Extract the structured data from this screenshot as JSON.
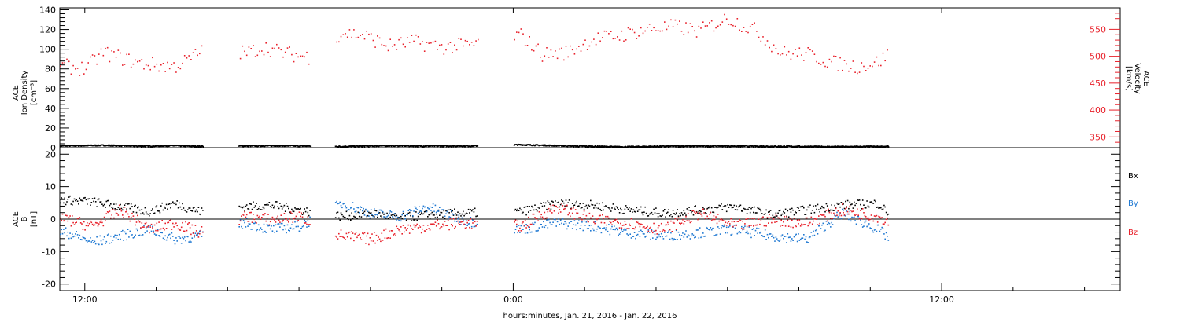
{
  "x_label": "hours:minutes, Jan. 21, 2016 - Jan. 22, 2016",
  "x_ticks": [
    "12:00",
    "0:00",
    "12:00"
  ],
  "colors": {
    "black": "#000000",
    "blue": "#1e78d2",
    "red": "#e8202a"
  },
  "chart_data": [
    {
      "type": "scatter",
      "panel": "top",
      "ylabel_left": [
        "ACE",
        "Ion Density",
        "[cm⁻³]"
      ],
      "ylabel_right": [
        "ACE",
        "Velocity",
        "[km/s]"
      ],
      "ylim": [
        0,
        142
      ],
      "ylim_right": [
        330,
        590
      ],
      "y_ticks": [
        "0",
        "20",
        "40",
        "60",
        "80",
        "100",
        "120",
        "140"
      ],
      "y_ticks_right": [
        "350",
        "400",
        "450",
        "500",
        "550"
      ],
      "x_range_hours": [
        11.3,
        41.0
      ],
      "data_segments_hours": [
        [
          11.3,
          15.3
        ],
        [
          16.3,
          18.3
        ],
        [
          19.0,
          23.0
        ],
        [
          24.0,
          34.5
        ]
      ],
      "series": [
        {
          "axis": "left",
          "color": "#000000",
          "x_hours": [
            11.5,
            12.5,
            13.5,
            14.5,
            15.2,
            16.5,
            17.5,
            18.2,
            19.2,
            20.5,
            21.5,
            22.8,
            24.2,
            25.5,
            27.0,
            28.5,
            30.0,
            31.5,
            33.0,
            34.4
          ],
          "values": [
            2.5,
            3.0,
            2.2,
            2.6,
            2.0,
            2.4,
            2.6,
            2.3,
            1.8,
            2.6,
            2.3,
            2.4,
            3.6,
            2.4,
            1.4,
            2.2,
            2.3,
            1.9,
            1.6,
            1.8
          ]
        },
        {
          "axis": "right",
          "color": "#e8202a",
          "x_hours": [
            11.5,
            12.0,
            12.5,
            13.0,
            13.5,
            14.0,
            14.5,
            15.0,
            15.3,
            16.5,
            17.0,
            17.5,
            18.0,
            18.3,
            19.2,
            19.8,
            20.5,
            21.2,
            22.0,
            22.8,
            24.2,
            24.8,
            25.5,
            26.2,
            27.0,
            27.8,
            28.5,
            29.2,
            30.0,
            30.8,
            31.5,
            32.2,
            33.0,
            33.6,
            34.2,
            34.5
          ],
          "values": [
            482,
            478,
            508,
            498,
            488,
            485,
            482,
            498,
            515,
            507,
            518,
            508,
            502,
            500,
            545,
            540,
            520,
            528,
            518,
            522,
            540,
            505,
            508,
            532,
            540,
            552,
            556,
            548,
            572,
            548,
            507,
            505,
            488,
            482,
            490,
            505
          ]
        }
      ]
    },
    {
      "type": "scatter",
      "panel": "bottom",
      "ylabel_left": [
        "ACE",
        "B",
        "[nT]"
      ],
      "ylim": [
        -22,
        22
      ],
      "y_ticks": [
        "-20",
        "-10",
        "0",
        "10",
        "20"
      ],
      "legend": [
        "Bx",
        "By",
        "Bz"
      ],
      "legend_placement": "right",
      "series": [
        {
          "name": "Bx",
          "color": "#000000",
          "x_hours": [
            11.5,
            12.2,
            13.0,
            13.8,
            14.5,
            15.2,
            16.5,
            17.2,
            18.0,
            19.2,
            20.0,
            20.8,
            21.6,
            22.5,
            24.2,
            25.2,
            26.2,
            27.2,
            28.2,
            29.2,
            30.2,
            31.2,
            32.2,
            33.2,
            34.2,
            34.5
          ],
          "values": [
            6,
            5.5,
            4,
            2.5,
            5,
            2.5,
            4,
            4.5,
            3,
            1,
            2,
            0.5,
            1.5,
            2,
            2.5,
            5,
            4.5,
            3,
            2,
            3,
            4,
            1.5,
            3,
            4.5,
            5,
            2
          ]
        },
        {
          "name": "By",
          "color": "#1e78d2",
          "x_hours": [
            11.5,
            12.2,
            13.0,
            13.8,
            14.5,
            15.2,
            16.5,
            17.2,
            18.0,
            19.2,
            20.0,
            20.8,
            21.6,
            22.5,
            24.2,
            25.2,
            26.2,
            27.2,
            28.2,
            29.2,
            30.2,
            31.2,
            32.2,
            33.2,
            34.2,
            34.5
          ],
          "values": [
            -4,
            -7,
            -5,
            -3,
            -6,
            -5,
            -1,
            -3,
            -2,
            5,
            2,
            1,
            4,
            0,
            -3,
            -1,
            -2,
            -4,
            -5,
            -4,
            -3,
            -5,
            -6,
            2,
            -3,
            -5.5
          ]
        },
        {
          "name": "Bz",
          "color": "#e8202a",
          "x_hours": [
            11.5,
            12.2,
            13.0,
            13.8,
            14.5,
            15.2,
            16.5,
            17.2,
            18.0,
            19.2,
            20.0,
            20.8,
            21.6,
            22.5,
            24.2,
            25.2,
            26.2,
            27.2,
            28.2,
            29.2,
            30.2,
            31.2,
            32.2,
            33.2,
            34.2,
            34.5
          ],
          "values": [
            0,
            -2,
            3,
            -3,
            -1,
            -4,
            1,
            0,
            1,
            -5,
            -6,
            -3,
            -2,
            -1,
            -2,
            4,
            0,
            -1,
            -3,
            2,
            -2,
            0,
            -1,
            3,
            1,
            -0.5
          ]
        }
      ]
    }
  ]
}
